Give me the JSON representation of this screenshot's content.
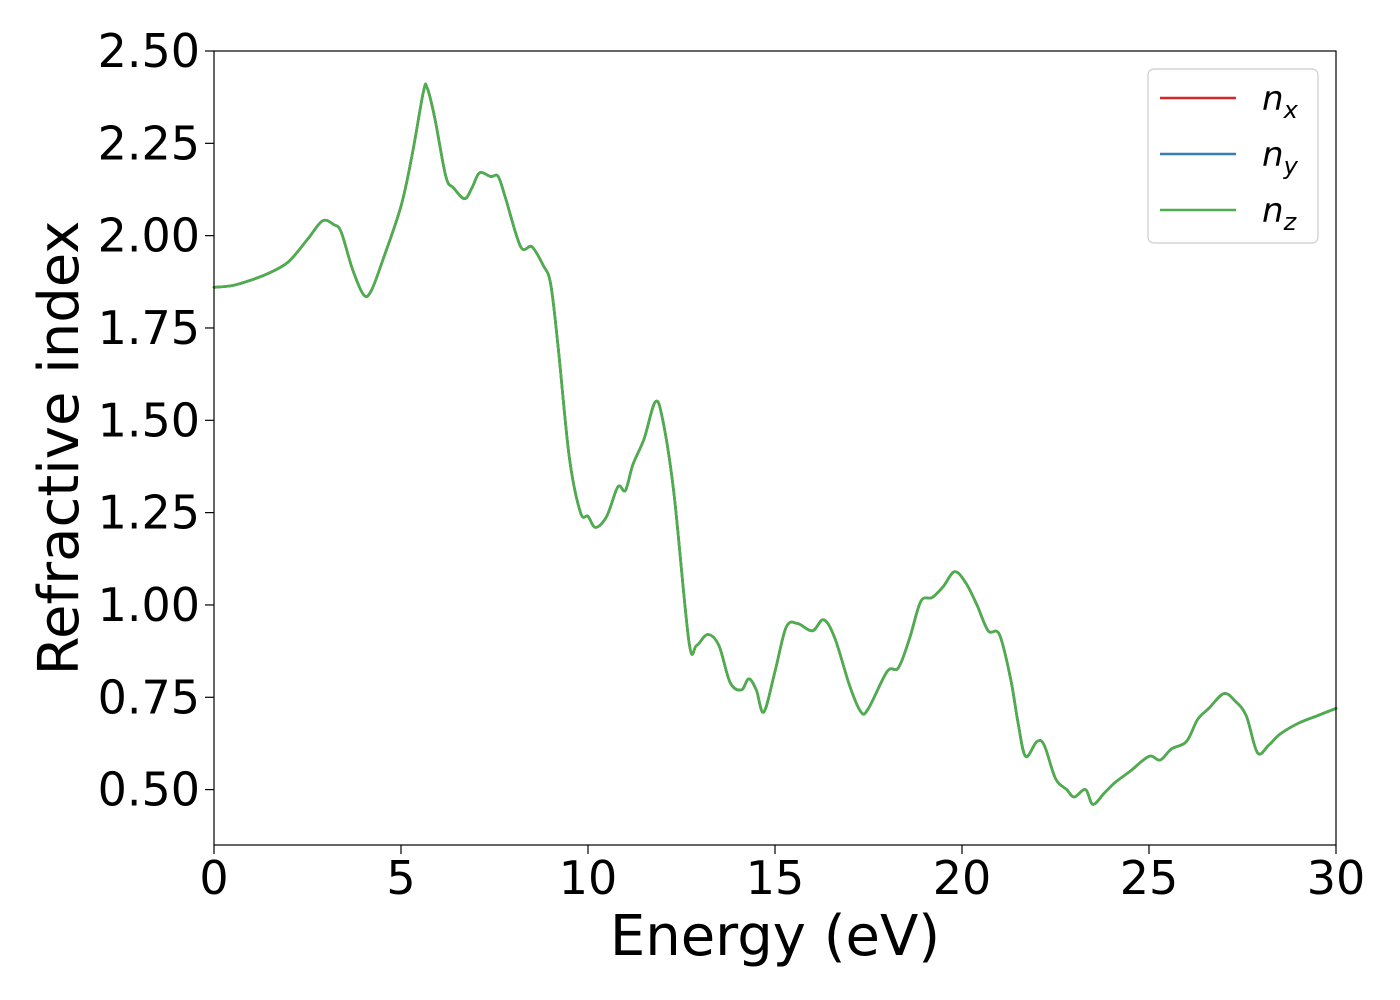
{
  "chart_data": {
    "type": "line",
    "title": "",
    "xlabel": "Energy (eV)",
    "ylabel": "Refractive index",
    "xlim": [
      0,
      30
    ],
    "ylim": [
      0.35,
      2.5
    ],
    "xticks": [
      0,
      5,
      10,
      15,
      20,
      25,
      30
    ],
    "xtick_labels": [
      "0",
      "5",
      "10",
      "15",
      "20",
      "25",
      "30"
    ],
    "yticks": [
      0.5,
      0.75,
      1.0,
      1.25,
      1.5,
      1.75,
      2.0,
      2.25,
      2.5
    ],
    "ytick_labels": [
      "0.50",
      "0.75",
      "1.00",
      "1.25",
      "1.50",
      "1.75",
      "2.00",
      "2.25",
      "2.50"
    ],
    "grid": false,
    "legend_position": "top-right",
    "x": [
      0,
      0.5,
      1.0,
      1.5,
      2.0,
      2.5,
      2.9,
      3.2,
      3.4,
      3.7,
      4.0,
      4.2,
      4.5,
      5.0,
      5.3,
      5.6,
      5.7,
      5.9,
      6.2,
      6.4,
      6.7,
      6.9,
      7.1,
      7.4,
      7.6,
      7.8,
      8.2,
      8.5,
      8.8,
      9.0,
      9.2,
      9.5,
      9.8,
      10.0,
      10.2,
      10.5,
      10.8,
      11.0,
      11.2,
      11.5,
      11.8,
      12.0,
      12.3,
      12.7,
      12.9,
      13.2,
      13.5,
      13.8,
      14.1,
      14.3,
      14.5,
      14.7,
      15.0,
      15.3,
      15.6,
      16.0,
      16.3,
      16.6,
      17.0,
      17.3,
      17.5,
      18.0,
      18.3,
      18.6,
      18.9,
      19.2,
      19.5,
      19.8,
      20.1,
      20.4,
      20.7,
      21.0,
      21.3,
      21.5,
      21.7,
      22.0,
      22.2,
      22.5,
      22.8,
      23.0,
      23.3,
      23.5,
      23.8,
      24.1,
      24.5,
      25.0,
      25.3,
      25.6,
      26.0,
      26.3,
      26.6,
      27.0,
      27.3,
      27.6,
      27.9,
      28.2,
      28.5,
      29.0,
      29.5,
      30.0
    ],
    "series": [
      {
        "name": "n_x",
        "color": "#d62728",
        "values": [
          1.86,
          1.865,
          1.88,
          1.9,
          1.93,
          1.99,
          2.04,
          2.03,
          2.01,
          1.91,
          1.84,
          1.85,
          1.93,
          2.08,
          2.22,
          2.39,
          2.4,
          2.32,
          2.16,
          2.13,
          2.1,
          2.13,
          2.17,
          2.16,
          2.16,
          2.1,
          1.97,
          1.97,
          1.92,
          1.87,
          1.7,
          1.4,
          1.25,
          1.24,
          1.21,
          1.24,
          1.32,
          1.31,
          1.38,
          1.45,
          1.55,
          1.5,
          1.3,
          0.9,
          0.89,
          0.92,
          0.89,
          0.79,
          0.77,
          0.8,
          0.77,
          0.71,
          0.82,
          0.94,
          0.95,
          0.93,
          0.96,
          0.91,
          0.78,
          0.71,
          0.72,
          0.82,
          0.83,
          0.91,
          1.01,
          1.02,
          1.05,
          1.09,
          1.06,
          1.0,
          0.93,
          0.92,
          0.8,
          0.68,
          0.59,
          0.63,
          0.62,
          0.53,
          0.5,
          0.48,
          0.5,
          0.46,
          0.49,
          0.52,
          0.55,
          0.59,
          0.58,
          0.61,
          0.63,
          0.69,
          0.72,
          0.76,
          0.74,
          0.7,
          0.6,
          0.62,
          0.65,
          0.68,
          0.7,
          0.72
        ]
      },
      {
        "name": "n_y",
        "color": "#377eb8",
        "values": [
          1.86,
          1.865,
          1.88,
          1.9,
          1.93,
          1.99,
          2.04,
          2.03,
          2.01,
          1.91,
          1.84,
          1.85,
          1.93,
          2.08,
          2.22,
          2.39,
          2.4,
          2.32,
          2.16,
          2.13,
          2.1,
          2.13,
          2.17,
          2.16,
          2.16,
          2.1,
          1.97,
          1.97,
          1.92,
          1.87,
          1.7,
          1.4,
          1.25,
          1.24,
          1.21,
          1.24,
          1.32,
          1.31,
          1.38,
          1.45,
          1.55,
          1.5,
          1.3,
          0.9,
          0.89,
          0.92,
          0.89,
          0.79,
          0.77,
          0.8,
          0.77,
          0.71,
          0.82,
          0.94,
          0.95,
          0.93,
          0.96,
          0.91,
          0.78,
          0.71,
          0.72,
          0.82,
          0.83,
          0.91,
          1.01,
          1.02,
          1.05,
          1.09,
          1.06,
          1.0,
          0.93,
          0.92,
          0.8,
          0.68,
          0.59,
          0.63,
          0.62,
          0.53,
          0.5,
          0.48,
          0.5,
          0.46,
          0.49,
          0.52,
          0.55,
          0.59,
          0.58,
          0.61,
          0.63,
          0.69,
          0.72,
          0.76,
          0.74,
          0.7,
          0.6,
          0.62,
          0.65,
          0.68,
          0.7,
          0.72
        ]
      },
      {
        "name": "n_z",
        "color": "#4daf4a",
        "values": [
          1.86,
          1.865,
          1.88,
          1.9,
          1.93,
          1.99,
          2.04,
          2.03,
          2.01,
          1.91,
          1.84,
          1.85,
          1.93,
          2.08,
          2.22,
          2.39,
          2.4,
          2.32,
          2.16,
          2.13,
          2.1,
          2.13,
          2.17,
          2.16,
          2.16,
          2.1,
          1.97,
          1.97,
          1.92,
          1.87,
          1.7,
          1.4,
          1.25,
          1.24,
          1.21,
          1.24,
          1.32,
          1.31,
          1.38,
          1.45,
          1.55,
          1.5,
          1.3,
          0.9,
          0.89,
          0.92,
          0.89,
          0.79,
          0.77,
          0.8,
          0.77,
          0.71,
          0.82,
          0.94,
          0.95,
          0.93,
          0.96,
          0.91,
          0.78,
          0.71,
          0.72,
          0.82,
          0.83,
          0.91,
          1.01,
          1.02,
          1.05,
          1.09,
          1.06,
          1.0,
          0.93,
          0.92,
          0.8,
          0.68,
          0.59,
          0.63,
          0.62,
          0.53,
          0.5,
          0.48,
          0.5,
          0.46,
          0.49,
          0.52,
          0.55,
          0.59,
          0.58,
          0.61,
          0.63,
          0.69,
          0.72,
          0.76,
          0.74,
          0.7,
          0.6,
          0.62,
          0.65,
          0.68,
          0.7,
          0.72
        ]
      }
    ],
    "legend": [
      {
        "base": "n",
        "sub": "x",
        "color": "#d62728"
      },
      {
        "base": "n",
        "sub": "y",
        "color": "#377eb8"
      },
      {
        "base": "n",
        "sub": "z",
        "color": "#4daf4a"
      }
    ]
  }
}
